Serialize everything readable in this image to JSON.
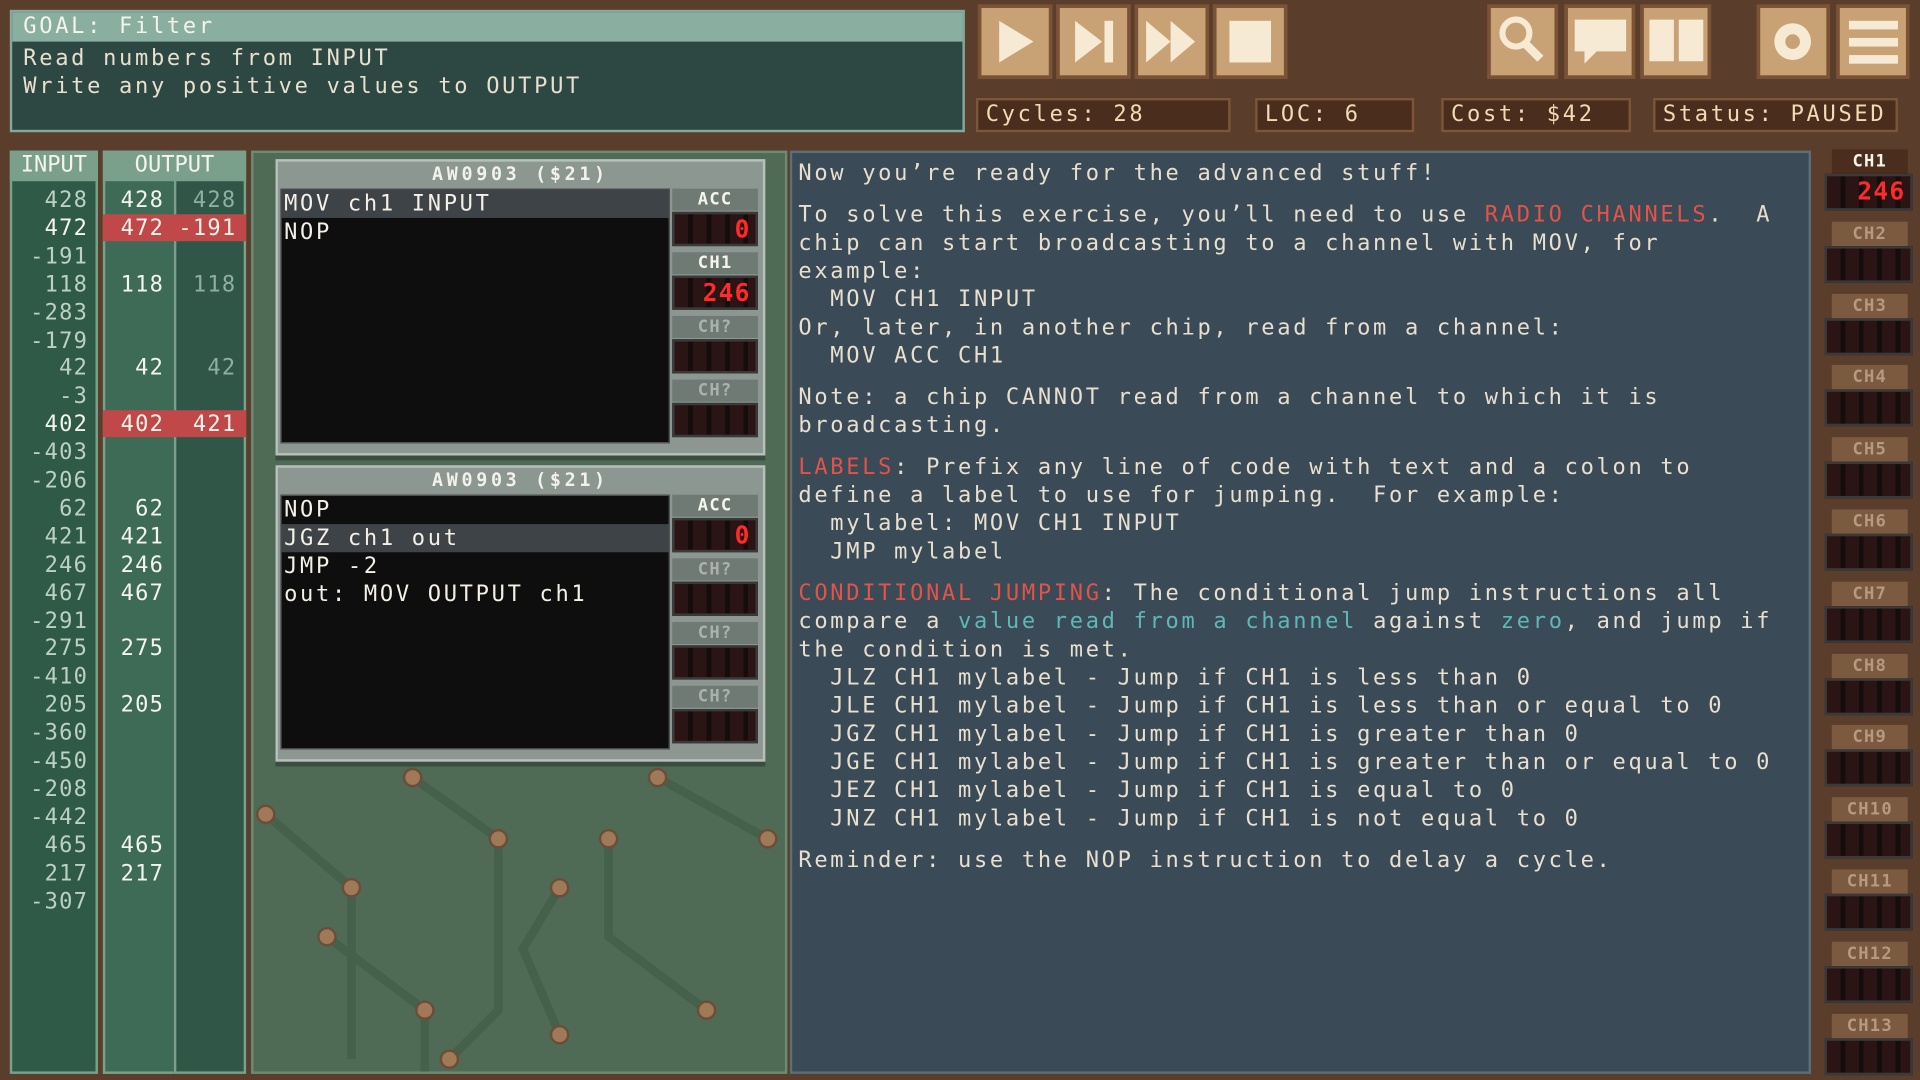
{
  "goal": {
    "title": "GOAL: Filter",
    "lines": [
      "Read numbers from INPUT",
      "Write any positive values to OUTPUT"
    ]
  },
  "stats": {
    "cycles": "Cycles: 28",
    "loc": "LOC: 6",
    "cost": "Cost: $42",
    "status": "Status: PAUSED"
  },
  "io": {
    "input_header": "INPUT",
    "output_header": "OUTPUT",
    "rows": [
      [
        428,
        428,
        428
      ],
      [
        472,
        472,
        -191
      ],
      [
        -191,
        null,
        null
      ],
      [
        118,
        118,
        118
      ],
      [
        -283,
        null,
        null
      ],
      [
        -179,
        null,
        null
      ],
      [
        42,
        42,
        42
      ],
      [
        -3,
        null,
        null
      ],
      [
        402,
        402,
        421
      ],
      [
        -403,
        null,
        null
      ],
      [
        -206,
        null,
        null
      ],
      [
        62,
        62,
        null
      ],
      [
        421,
        421,
        null
      ],
      [
        246,
        246,
        null
      ],
      [
        467,
        467,
        null
      ],
      [
        -291,
        null,
        null
      ],
      [
        275,
        275,
        null
      ],
      [
        -410,
        null,
        null
      ],
      [
        205,
        205,
        null
      ],
      [
        -360,
        null,
        null
      ],
      [
        -450,
        null,
        null
      ],
      [
        -208,
        null,
        null
      ],
      [
        -442,
        null,
        null
      ],
      [
        465,
        465,
        null
      ],
      [
        217,
        217,
        null
      ],
      [
        -307,
        null,
        null
      ]
    ]
  },
  "chips": [
    {
      "title": "AW0903 ($21)",
      "code": [
        "MOV ch1 INPUT",
        "NOP"
      ],
      "active_line": 0,
      "registers": [
        {
          "label": "ACC",
          "value": 0
        },
        {
          "label": "CH1",
          "value": 246
        },
        {
          "label": "CH?",
          "value": null
        },
        {
          "label": "CH?",
          "value": null
        }
      ]
    },
    {
      "title": "AW0903 ($21)",
      "code": [
        "NOP",
        "JGZ ch1 out",
        "JMP -2",
        "out: MOV OUTPUT ch1"
      ],
      "active_line": 1,
      "registers": [
        {
          "label": "ACC",
          "value": 0
        },
        {
          "label": "CH?",
          "value": null
        },
        {
          "label": "CH?",
          "value": null
        },
        {
          "label": "CH?",
          "value": null
        }
      ]
    }
  ],
  "help": [
    [
      [
        "Now you’re ready for the advanced stuff!"
      ]
    ],
    [
      [
        "To solve this exercise, you’ll need to use ",
        {
          "text": "RADIO CHANNELS",
          "color": "red"
        },
        ".  A"
      ],
      [
        "chip can start broadcasting to a channel with MOV, for"
      ],
      [
        "example:"
      ],
      [
        "  MOV CH1 INPUT"
      ],
      [
        "Or, later, in another chip, read from a channel:"
      ],
      [
        "  MOV ACC CH1"
      ]
    ],
    [
      [
        "Note: a chip CANNOT read from a channel to which it is"
      ],
      [
        "broadcasting."
      ]
    ],
    [
      [
        {
          "text": "LABELS",
          "color": "red"
        },
        ": Prefix any line of code with text and a colon to"
      ],
      [
        "define a label to use for jumping.  For example:"
      ],
      [
        "  mylabel: MOV CH1 INPUT"
      ],
      [
        "  JMP mylabel"
      ]
    ],
    [
      [
        {
          "text": "CONDITIONAL JUMPING",
          "color": "red"
        },
        ": The conditional jump instructions all"
      ],
      [
        "compare a ",
        {
          "text": "value read from a channel",
          "color": "cyan"
        },
        " against ",
        {
          "text": "zero",
          "color": "cyan"
        },
        ", and jump if"
      ],
      [
        "the condition is met."
      ],
      [
        "  JLZ CH1 mylabel - Jump if CH1 is less than 0"
      ],
      [
        "  JLE CH1 mylabel - Jump if CH1 is less than or equal to 0"
      ],
      [
        "  JGZ CH1 mylabel - Jump if CH1 is greater than 0"
      ],
      [
        "  JGE CH1 mylabel - Jump if CH1 is greater than or equal to 0"
      ],
      [
        "  JEZ CH1 mylabel - Jump if CH1 is equal to 0"
      ],
      [
        "  JNZ CH1 mylabel - Jump if CH1 is not equal to 0"
      ]
    ],
    [
      [
        "Reminder: use the NOP instruction to delay a cycle."
      ]
    ]
  ],
  "channels": [
    {
      "label": "CH1",
      "value": 246
    },
    {
      "label": "CH2",
      "value": null
    },
    {
      "label": "CH3",
      "value": null
    },
    {
      "label": "CH4",
      "value": null
    },
    {
      "label": "CH5",
      "value": null
    },
    {
      "label": "CH6",
      "value": null
    },
    {
      "label": "CH7",
      "value": null
    },
    {
      "label": "CH8",
      "value": null
    },
    {
      "label": "CH9",
      "value": null
    },
    {
      "label": "CH10",
      "value": null
    },
    {
      "label": "CH11",
      "value": null
    },
    {
      "label": "CH12",
      "value": null
    },
    {
      "label": "CH13",
      "value": null
    }
  ]
}
